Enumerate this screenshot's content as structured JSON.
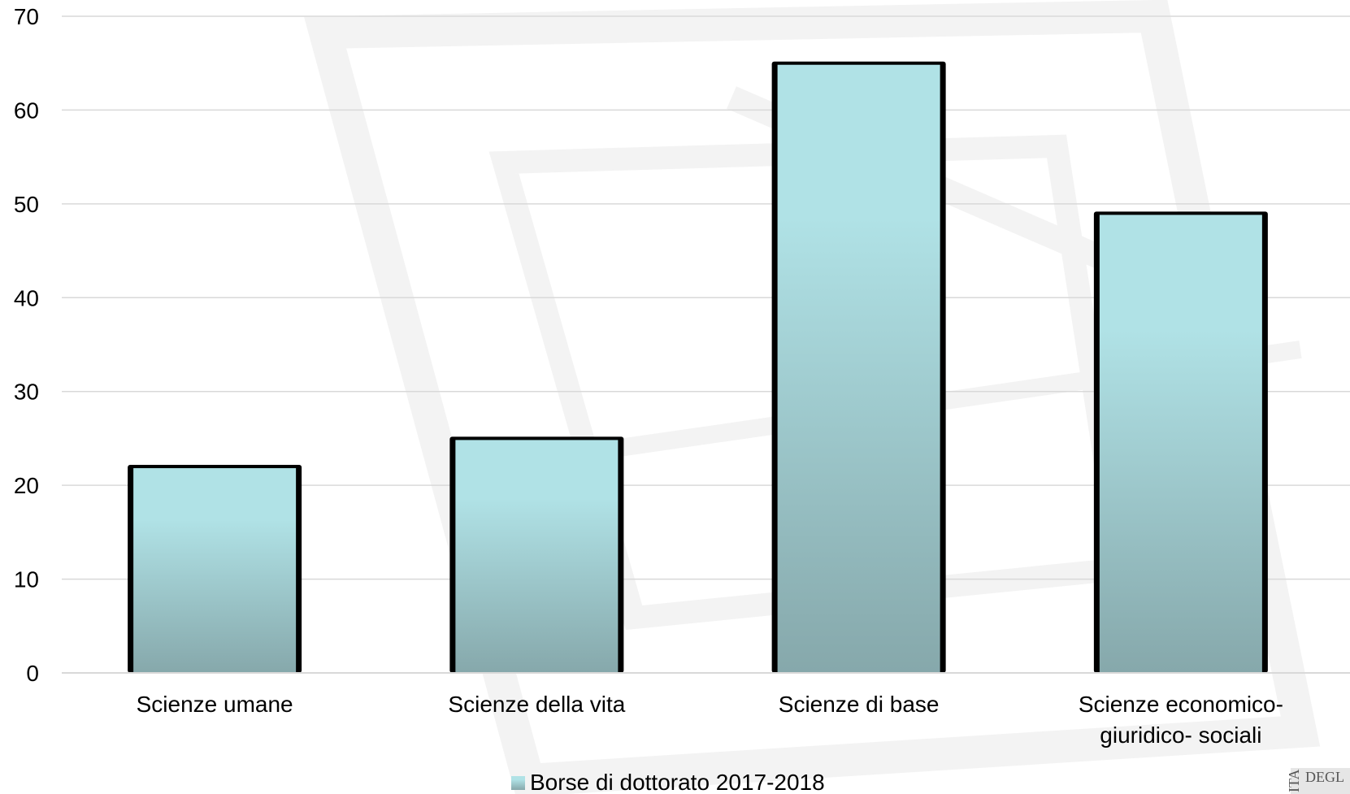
{
  "chart_data": {
    "type": "bar",
    "categories": [
      "Scienze umane",
      "Scienze della vita",
      "Scienze di base",
      "Scienze economico-giuridico- sociali"
    ],
    "category_label_lines": [
      [
        "Scienze umane"
      ],
      [
        "Scienze della vita"
      ],
      [
        "Scienze di base"
      ],
      [
        "Scienze economico-",
        "giuridico- sociali"
      ]
    ],
    "series": [
      {
        "name": "Borse di dottorato 2017-2018",
        "values": [
          22,
          25,
          65,
          49
        ]
      }
    ],
    "y_ticks": [
      "0",
      "10",
      "20",
      "30",
      "40",
      "50",
      "60",
      "70"
    ],
    "ylim": [
      0,
      70
    ],
    "grid": true,
    "legend_position": "bottom",
    "colors": {
      "bar_top": "#b0e2e6",
      "bar_bottom": "#86a8ab",
      "grid": "#d9d9d9",
      "edge": "#000000",
      "watermark": "#f0f0f0"
    }
  },
  "logo": {
    "text": "DEGL"
  }
}
